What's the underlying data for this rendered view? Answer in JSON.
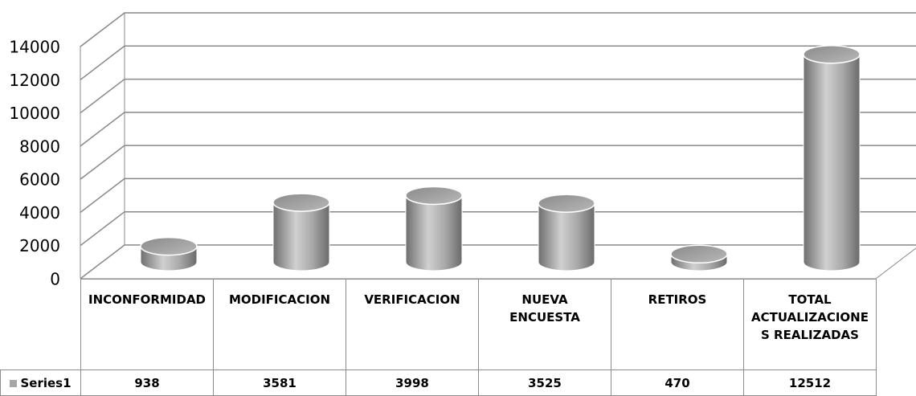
{
  "chart_data": {
    "type": "cylinder",
    "categories": [
      "INCONFORMIDAD",
      "MODIFICACION",
      "VERIFICACION",
      "NUEVA ENCUESTA",
      "RETIROS",
      "TOTAL ACTUALIZACIONES REALIZADAS"
    ],
    "series": [
      {
        "name": "Series1",
        "color": "#a6a6a6",
        "values": [
          938,
          3581,
          3998,
          3525,
          470,
          12512
        ]
      }
    ],
    "ylim": [
      0,
      14000
    ],
    "yticks": [
      0,
      2000,
      4000,
      6000,
      8000,
      10000,
      12000,
      14000
    ],
    "grid": true,
    "data_table": true
  }
}
